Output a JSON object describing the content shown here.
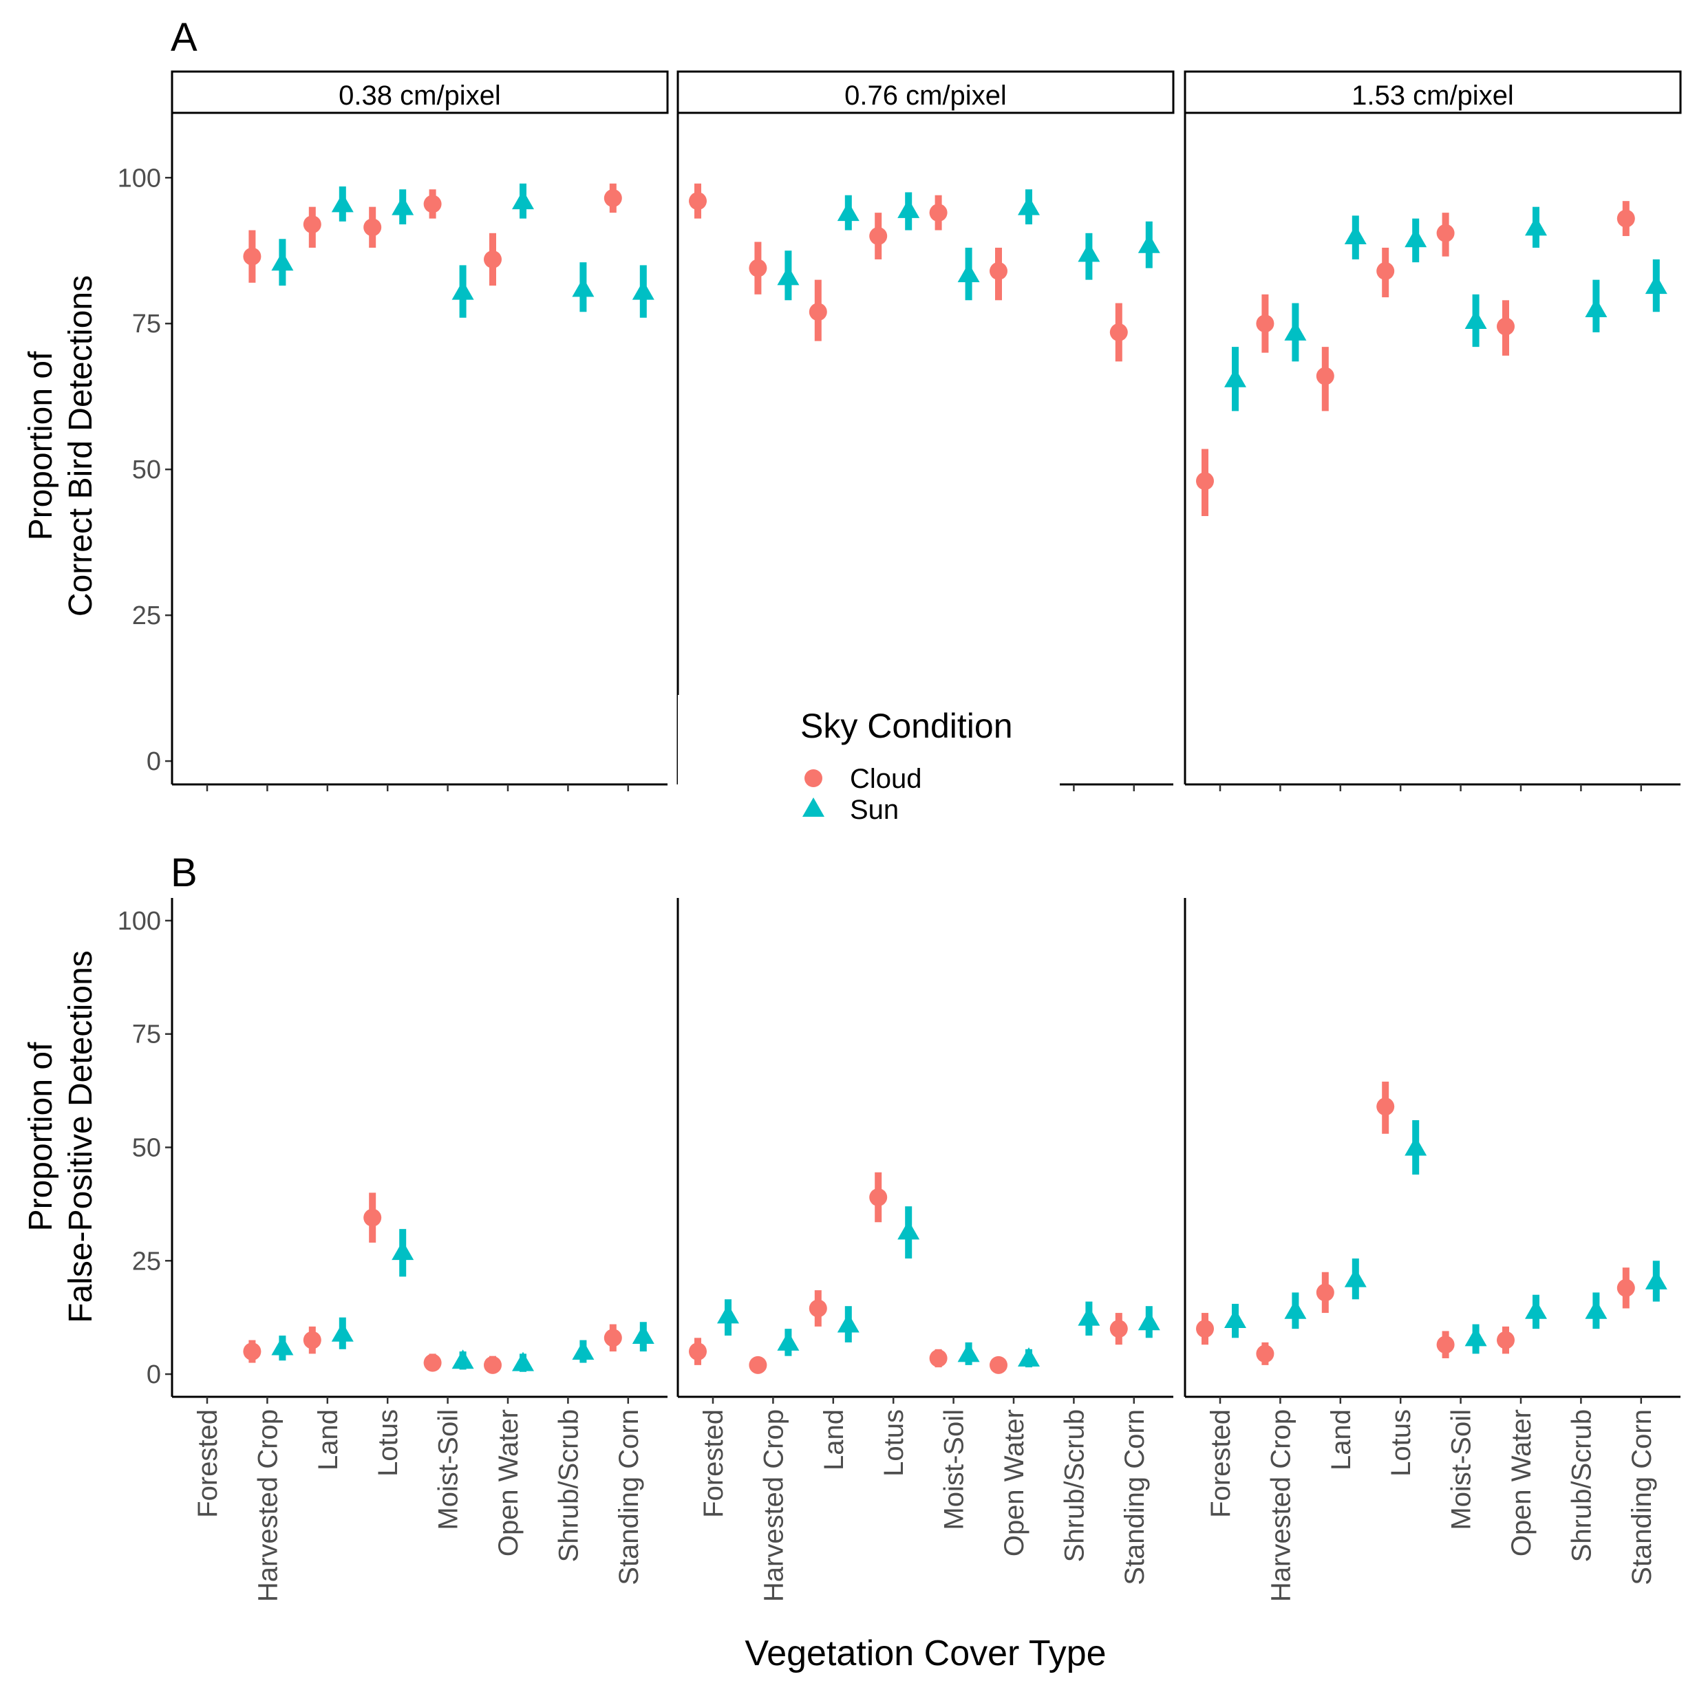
{
  "chart_data": [
    {
      "panel_label": "A",
      "type": "scatter",
      "title": "",
      "ylabel_line1": "Proportion of",
      "ylabel_line2": "Correct Bird Detections",
      "xlabel": "Vegetation Cover Type",
      "ylim": [
        -4,
        111
      ],
      "yticks": [
        0,
        25,
        50,
        75,
        100
      ],
      "facets": [
        "0.38 cm/pixel",
        "0.76 cm/pixel",
        "1.53 cm/pixel"
      ],
      "categories": [
        "Forested",
        "Harvested Crop",
        "Land",
        "Lotus",
        "Moist-Soil",
        "Open Water",
        "Shrub/Scrub",
        "Standing Corn"
      ],
      "series": [
        {
          "name": "Cloud",
          "values": [
            [
              null,
              86.5,
              92,
              91.5,
              95.5,
              86,
              null,
              96.5
            ],
            [
              96,
              84.5,
              77,
              90,
              94,
              84,
              null,
              73.5
            ],
            [
              48,
              75,
              66,
              84,
              90.5,
              74.5,
              null,
              93
            ]
          ],
          "lower": [
            [
              null,
              82,
              88,
              88,
              93,
              81.5,
              null,
              94
            ],
            [
              93,
              80,
              72,
              86,
              91,
              79,
              null,
              68.5
            ],
            [
              42,
              70,
              60,
              79.5,
              86.5,
              69.5,
              null,
              90
            ]
          ],
          "upper": [
            [
              null,
              91,
              95,
              95,
              98,
              90.5,
              null,
              99
            ],
            [
              99,
              89,
              82.5,
              94,
              97,
              88,
              null,
              78.5
            ],
            [
              53.5,
              80,
              71,
              88,
              94,
              79,
              null,
              96
            ]
          ]
        },
        {
          "name": "Sun",
          "values": [
            [
              null,
              85.5,
              95.5,
              95,
              80.5,
              96,
              81,
              80.5
            ],
            [
              null,
              83,
              94,
              94.5,
              83.5,
              95,
              87,
              88.5
            ],
            [
              65.5,
              73.5,
              90,
              89.5,
              75.5,
              91.5,
              77.5,
              81.5
            ]
          ],
          "lower": [
            [
              null,
              81.5,
              92.5,
              92,
              76,
              93,
              77,
              76
            ],
            [
              null,
              79,
              91,
              91,
              79,
              92,
              82.5,
              84.5
            ],
            [
              60,
              68.5,
              86,
              85.5,
              71,
              88,
              73.5,
              77
            ]
          ],
          "upper": [
            [
              null,
              89.5,
              98.5,
              98,
              85,
              99,
              85.5,
              85
            ],
            [
              null,
              87.5,
              97,
              97.5,
              88,
              98,
              90.5,
              92.5
            ],
            [
              71,
              78.5,
              93.5,
              93,
              80,
              95,
              82.5,
              86
            ]
          ]
        }
      ]
    },
    {
      "panel_label": "B",
      "type": "scatter",
      "title": "",
      "ylabel_line1": "Proportion of",
      "ylabel_line2": "False-Positive Detections",
      "xlabel": "Vegetation Cover Type",
      "ylim": [
        -5,
        105
      ],
      "yticks": [
        0,
        25,
        50,
        75,
        100
      ],
      "facets": [
        "0.38 cm/pixel",
        "0.76 cm/pixel",
        "1.53 cm/pixel"
      ],
      "categories": [
        "Forested",
        "Harvested Crop",
        "Land",
        "Lotus",
        "Moist-Soil",
        "Open Water",
        "Shrub/Scrub",
        "Standing Corn"
      ],
      "series": [
        {
          "name": "Cloud",
          "values": [
            [
              null,
              5,
              7.5,
              34.5,
              2.5,
              2,
              null,
              8
            ],
            [
              5,
              2,
              14.5,
              39,
              3.5,
              2,
              null,
              10
            ],
            [
              10,
              4.5,
              18,
              59,
              6.5,
              7.5,
              null,
              19
            ]
          ],
          "lower": [
            [
              null,
              2.5,
              4.5,
              29,
              1,
              0.5,
              null,
              5
            ],
            [
              2,
              0.5,
              10.5,
              33.5,
              1.5,
              0.5,
              null,
              6.5
            ],
            [
              6.5,
              2,
              13.5,
              53,
              3.5,
              4.5,
              null,
              14.5
            ]
          ],
          "upper": [
            [
              null,
              7.5,
              10.5,
              40,
              4.5,
              4,
              null,
              11
            ],
            [
              8,
              3.5,
              18.5,
              44.5,
              5.5,
              3.5,
              null,
              13.5
            ],
            [
              13.5,
              7,
              22.5,
              64.5,
              9.5,
              10.5,
              null,
              23.5
            ]
          ]
        },
        {
          "name": "Sun",
          "values": [
            [
              null,
              6,
              9,
              27,
              3,
              2.5,
              5,
              8.5
            ],
            [
              13,
              7,
              11,
              31.5,
              4.5,
              3.5,
              12.5,
              11.5
            ],
            [
              12,
              14,
              21,
              50,
              8,
              14,
              14,
              20.5
            ]
          ],
          "lower": [
            [
              null,
              3,
              5.5,
              21.5,
              1,
              0.5,
              2.5,
              5
            ],
            [
              8.5,
              4,
              7,
              25.5,
              2,
              1.5,
              8.5,
              8
            ],
            [
              8,
              10,
              16.5,
              44,
              4.5,
              10,
              10,
              16
            ]
          ],
          "upper": [
            [
              null,
              8.5,
              12.5,
              32,
              5,
              4.5,
              7.5,
              11.5
            ],
            [
              16.5,
              10,
              15,
              37,
              7,
              5.5,
              16,
              15
            ],
            [
              15.5,
              18,
              25.5,
              56,
              11,
              17.5,
              18,
              25
            ]
          ]
        }
      ]
    }
  ],
  "legend": {
    "title": "Sky Condition",
    "items": [
      {
        "label": "Cloud",
        "shape": "circle",
        "color": "#F8766D"
      },
      {
        "label": "Sun",
        "shape": "triangle",
        "color": "#00BFC4"
      }
    ]
  },
  "colors": {
    "Cloud": "#F8766D",
    "Sun": "#00BFC4"
  }
}
